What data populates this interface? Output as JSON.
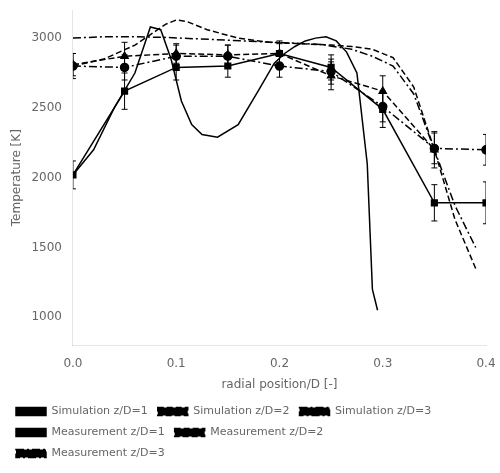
{
  "chart_data": {
    "type": "line",
    "xlabel": "radial position/D [-]",
    "ylabel": "Temperature [K]",
    "xlim": [
      0,
      0.4
    ],
    "ylim": [
      800,
      3200
    ],
    "xticks": [
      {
        "value": 0,
        "label": "0.0"
      },
      0.1,
      0.2,
      0.3,
      0.4
    ],
    "yticks": [
      1000,
      1500,
      2000,
      2500,
      3000
    ],
    "grid": false,
    "legend": "lower left",
    "series": [
      {
        "name": "Simulation z/D=1",
        "color": "#000000",
        "line_style": "solid",
        "marker": "none",
        "x": [
          0.0,
          0.02,
          0.04,
          0.06,
          0.075,
          0.085,
          0.095,
          0.105,
          0.115,
          0.125,
          0.14,
          0.16,
          0.18,
          0.195,
          0.205,
          0.215,
          0.225,
          0.235,
          0.245,
          0.255,
          0.265,
          0.275,
          0.285,
          0.29,
          0.295
        ],
        "values": [
          2020,
          2200,
          2500,
          2750,
          3080,
          3060,
          2850,
          2550,
          2380,
          2310,
          2290,
          2380,
          2630,
          2820,
          2890,
          2940,
          2980,
          3000,
          3010,
          2980,
          2900,
          2750,
          2100,
          1200,
          1050
        ]
      },
      {
        "name": "Simulation z/D=2",
        "color": "#000000",
        "line_style": "dashed",
        "marker": "none",
        "x": [
          0.0,
          0.03,
          0.06,
          0.08,
          0.09,
          0.1,
          0.11,
          0.13,
          0.16,
          0.19,
          0.22,
          0.25,
          0.27,
          0.29,
          0.31,
          0.33,
          0.35,
          0.37,
          0.39
        ],
        "values": [
          2800,
          2850,
          2950,
          3050,
          3100,
          3130,
          3120,
          3060,
          3000,
          2970,
          2960,
          2950,
          2940,
          2920,
          2860,
          2650,
          2200,
          1700,
          1350
        ]
      },
      {
        "name": "Simulation z/D=3",
        "color": "#000000",
        "line_style": "dashdot",
        "marker": "none",
        "x": [
          0.0,
          0.03,
          0.06,
          0.09,
          0.12,
          0.15,
          0.18,
          0.21,
          0.24,
          0.27,
          0.29,
          0.31,
          0.33,
          0.35,
          0.37,
          0.39
        ],
        "values": [
          3000,
          3010,
          3010,
          3005,
          2995,
          2985,
          2975,
          2965,
          2955,
          2920,
          2870,
          2800,
          2600,
          2200,
          1800,
          1500
        ]
      },
      {
        "name": "Measurement z/D=1",
        "color": "#000000",
        "line_style": "solid",
        "marker": "square",
        "x": [
          0.0,
          0.05,
          0.1,
          0.15,
          0.2,
          0.25,
          0.3,
          0.35,
          0.4
        ],
        "values": [
          2020,
          2620,
          2790,
          2800,
          2890,
          2790,
          2490,
          1820,
          1820
        ],
        "yerr": [
          100,
          130,
          90,
          80,
          90,
          90,
          130,
          130,
          150
        ]
      },
      {
        "name": "Measurement z/D=2",
        "color": "#000000",
        "line_style": "dashed",
        "marker": "triangle",
        "x": [
          0.0,
          0.05,
          0.1,
          0.15,
          0.2,
          0.25,
          0.3,
          0.35
        ],
        "values": [
          2810,
          2870,
          2890,
          2880,
          2890,
          2730,
          2620,
          2200
        ],
        "yerr": [
          80,
          100,
          70,
          70,
          70,
          100,
          110,
          130
        ]
      },
      {
        "name": "Measurement z/D=3",
        "color": "#000000",
        "line_style": "dashdot",
        "marker": "circle",
        "x": [
          0.0,
          0.05,
          0.1,
          0.15,
          0.2,
          0.25,
          0.3,
          0.35,
          0.4
        ],
        "values": [
          2800,
          2790,
          2870,
          2870,
          2800,
          2760,
          2510,
          2210,
          2200
        ],
        "yerr": [
          90,
          90,
          80,
          80,
          80,
          90,
          110,
          110,
          110
        ]
      }
    ]
  }
}
